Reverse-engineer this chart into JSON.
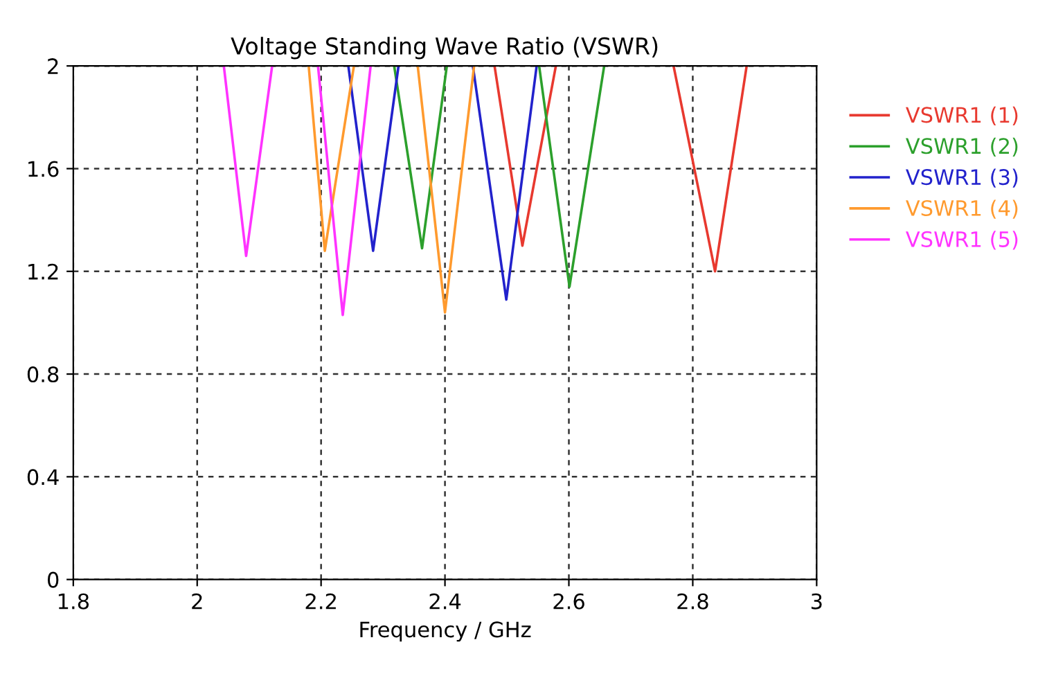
{
  "chart_data": {
    "type": "line",
    "title": "Voltage Standing Wave Ratio (VSWR)",
    "xlabel": "Frequency / GHz",
    "xlim": [
      1.8,
      3
    ],
    "ylim": [
      0,
      2
    ],
    "xticks": [
      1.8,
      2,
      2.2,
      2.4,
      2.6,
      2.8,
      3
    ],
    "yticks": [
      0,
      0.4,
      0.8,
      1.2,
      1.6,
      2
    ],
    "grid": true,
    "legend": "right",
    "line_style": "solid",
    "series": [
      {
        "name": "VSWR1 (1)",
        "color": "#e8392f",
        "x": [
          2.48,
          2.525,
          2.579,
          null,
          2.769,
          2.836,
          2.887
        ],
        "values": [
          2,
          1.3,
          2,
          null,
          2,
          1.2,
          2
        ]
      },
      {
        "name": "VSWR1 (2)",
        "color": "#2ca02c",
        "x": [
          2.318,
          2.363,
          2.403,
          null,
          2.552,
          2.601,
          2.657
        ],
        "values": [
          2,
          1.29,
          2,
          null,
          2,
          1.14,
          2
        ]
      },
      {
        "name": "VSWR1 (3)",
        "color": "#2222cc",
        "x": [
          2.244,
          2.284,
          2.325,
          null,
          2.445,
          2.499,
          2.548
        ],
        "values": [
          2,
          1.28,
          2,
          null,
          2,
          1.09,
          2
        ]
      },
      {
        "name": "VSWR1 (4)",
        "color": "#ff9a2e",
        "x": [
          2.18,
          2.206,
          2.253,
          null,
          2.356,
          2.4,
          2.447
        ],
        "values": [
          2,
          1.28,
          2,
          null,
          2,
          1.04,
          2
        ]
      },
      {
        "name": "VSWR1 (5)",
        "color": "#ff33ff",
        "x": [
          2.043,
          2.079,
          2.121,
          null,
          2.195,
          2.235,
          2.28
        ],
        "values": [
          2,
          1.26,
          2,
          null,
          2,
          1.03,
          2
        ]
      }
    ]
  }
}
